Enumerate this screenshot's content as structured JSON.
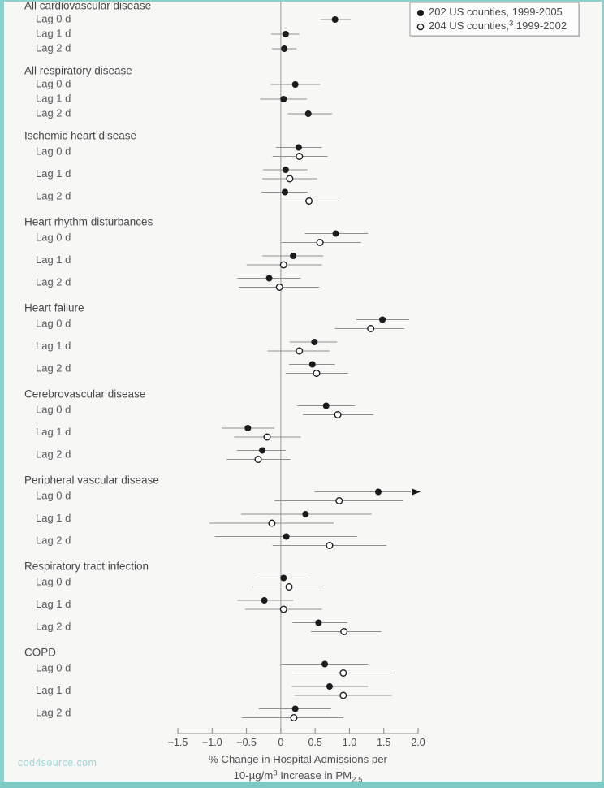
{
  "watermark": "cod4source.com",
  "colors": {
    "background": "#f7f7f5",
    "border_teal": "#8cd1cb",
    "border_teal_bottom": "#7ccac3",
    "marker_black": "#1b1b1b",
    "ci_gray": "#8f8f8f",
    "zero_line_gray": "#9c9c9c",
    "text_gray": "#4e4e50",
    "watermark_teal": "#9ed7d2",
    "legend_border": "#9b9b9b",
    "legend_fill": "#fdfdfd"
  },
  "legend": {
    "items": [
      {
        "marker": "filled",
        "parts": [
          {
            "t": "202 US counties, 1999-2005"
          }
        ]
      },
      {
        "marker": "open",
        "parts": [
          {
            "t": "204 US counties,"
          },
          {
            "t": "3",
            "sup": true
          },
          {
            "t": " 1999-2002"
          }
        ]
      }
    ]
  },
  "chart_data": {
    "type": "forest",
    "xlabel_line1": "% Change in Hospital Admissions per",
    "xlabel_line2_parts": [
      {
        "t": "10-µg/m"
      },
      {
        "t": "3",
        "sup": true
      },
      {
        "t": " Increase in PM"
      },
      {
        "t": "2.5",
        "sub": true
      }
    ],
    "xlim": [
      -1.5,
      2.0
    ],
    "axis": {
      "tick_values": [
        -1.5,
        -1.0,
        -0.5,
        0,
        0.5,
        1.0,
        1.5,
        2.0
      ],
      "ticks": [
        "−1.5",
        "−1.0",
        "−0.5",
        "0",
        "0.5",
        "1.0",
        "1.5",
        "2.0"
      ]
    },
    "series_legend": [
      "202 US counties, 1999-2005",
      "204 US counties, 1999-2002"
    ],
    "sections": [
      {
        "label": "All cardiovascular disease",
        "rows": [
          {
            "lag": "Lag 0 d",
            "series": [
              {
                "marker": "filled",
                "value": 0.79,
                "lo": 0.58,
                "hi": 1.02
              }
            ]
          },
          {
            "lag": "Lag 1 d",
            "series": [
              {
                "marker": "filled",
                "value": 0.07,
                "lo": -0.14,
                "hi": 0.27
              }
            ]
          },
          {
            "lag": "Lag 2 d",
            "series": [
              {
                "marker": "filled",
                "value": 0.05,
                "lo": -0.13,
                "hi": 0.23
              }
            ]
          }
        ]
      },
      {
        "label": "All respiratory disease",
        "rows": [
          {
            "lag": "Lag 0 d",
            "series": [
              {
                "marker": "filled",
                "value": 0.21,
                "lo": -0.15,
                "hi": 0.57
              }
            ]
          },
          {
            "lag": "Lag 1 d",
            "series": [
              {
                "marker": "filled",
                "value": 0.04,
                "lo": -0.3,
                "hi": 0.38
              }
            ]
          },
          {
            "lag": "Lag 2 d",
            "series": [
              {
                "marker": "filled",
                "value": 0.4,
                "lo": 0.1,
                "hi": 0.75
              }
            ]
          }
        ]
      },
      {
        "label": "Ischemic heart disease",
        "rows": [
          {
            "lag": "Lag 0 d",
            "series": [
              {
                "marker": "filled",
                "value": 0.26,
                "lo": -0.07,
                "hi": 0.6
              },
              {
                "marker": "open",
                "value": 0.27,
                "lo": -0.12,
                "hi": 0.68
              }
            ]
          },
          {
            "lag": "Lag 1 d",
            "series": [
              {
                "marker": "filled",
                "value": 0.07,
                "lo": -0.26,
                "hi": 0.39
              },
              {
                "marker": "open",
                "value": 0.13,
                "lo": -0.27,
                "hi": 0.53
              }
            ]
          },
          {
            "lag": "Lag 2 d",
            "series": [
              {
                "marker": "filled",
                "value": 0.06,
                "lo": -0.28,
                "hi": 0.39
              },
              {
                "marker": "open",
                "value": 0.41,
                "lo": 0.0,
                "hi": 0.85
              }
            ]
          }
        ]
      },
      {
        "label": "Heart rhythm disturbances",
        "rows": [
          {
            "lag": "Lag 0 d",
            "series": [
              {
                "marker": "filled",
                "value": 0.8,
                "lo": 0.35,
                "hi": 1.27
              },
              {
                "marker": "open",
                "value": 0.57,
                "lo": 0.01,
                "hi": 1.17
              }
            ]
          },
          {
            "lag": "Lag 1 d",
            "series": [
              {
                "marker": "filled",
                "value": 0.18,
                "lo": -0.27,
                "hi": 0.62
              },
              {
                "marker": "open",
                "value": 0.04,
                "lo": -0.5,
                "hi": 0.6
              }
            ]
          },
          {
            "lag": "Lag 2 d",
            "series": [
              {
                "marker": "filled",
                "value": -0.17,
                "lo": -0.63,
                "hi": 0.29
              },
              {
                "marker": "open",
                "value": -0.02,
                "lo": -0.61,
                "hi": 0.56
              }
            ]
          }
        ]
      },
      {
        "label": "Heart failure",
        "rows": [
          {
            "lag": "Lag 0 d",
            "series": [
              {
                "marker": "filled",
                "value": 1.48,
                "lo": 1.1,
                "hi": 1.87
              },
              {
                "marker": "open",
                "value": 1.31,
                "lo": 0.79,
                "hi": 1.8
              }
            ]
          },
          {
            "lag": "Lag 1 d",
            "series": [
              {
                "marker": "filled",
                "value": 0.49,
                "lo": 0.13,
                "hi": 0.82
              },
              {
                "marker": "open",
                "value": 0.27,
                "lo": -0.19,
                "hi": 0.71
              }
            ]
          },
          {
            "lag": "Lag 2 d",
            "series": [
              {
                "marker": "filled",
                "value": 0.46,
                "lo": 0.12,
                "hi": 0.79
              },
              {
                "marker": "open",
                "value": 0.52,
                "lo": 0.07,
                "hi": 0.98
              }
            ]
          }
        ]
      },
      {
        "label": "Cerebrovascular disease",
        "rows": [
          {
            "lag": "Lag 0 d",
            "series": [
              {
                "marker": "filled",
                "value": 0.66,
                "lo": 0.24,
                "hi": 1.08
              },
              {
                "marker": "open",
                "value": 0.83,
                "lo": 0.32,
                "hi": 1.35
              }
            ]
          },
          {
            "lag": "Lag 1 d",
            "series": [
              {
                "marker": "filled",
                "value": -0.48,
                "lo": -0.86,
                "hi": -0.09
              },
              {
                "marker": "open",
                "value": -0.2,
                "lo": -0.68,
                "hi": 0.29
              }
            ]
          },
          {
            "lag": "Lag 2 d",
            "series": [
              {
                "marker": "filled",
                "value": -0.27,
                "lo": -0.64,
                "hi": 0.07
              },
              {
                "marker": "open",
                "value": -0.33,
                "lo": -0.79,
                "hi": 0.14
              }
            ]
          }
        ]
      },
      {
        "label": "Peripheral vascular disease",
        "rows": [
          {
            "lag": "Lag 0 d",
            "series": [
              {
                "marker": "filled",
                "value": 1.42,
                "lo": 0.49,
                "hi": 2.0,
                "arrow_hi": true
              },
              {
                "marker": "open",
                "value": 0.85,
                "lo": -0.09,
                "hi": 1.78
              }
            ]
          },
          {
            "lag": "Lag 1 d",
            "series": [
              {
                "marker": "filled",
                "value": 0.36,
                "lo": -0.58,
                "hi": 1.32
              },
              {
                "marker": "open",
                "value": -0.13,
                "lo": -1.04,
                "hi": 0.77
              }
            ]
          },
          {
            "lag": "Lag 2 d",
            "series": [
              {
                "marker": "filled",
                "value": 0.08,
                "lo": -0.96,
                "hi": 1.11
              },
              {
                "marker": "open",
                "value": 0.71,
                "lo": -0.12,
                "hi": 1.54
              }
            ]
          }
        ]
      },
      {
        "label": "Respiratory tract infection",
        "rows": [
          {
            "lag": "Lag 0 d",
            "series": [
              {
                "marker": "filled",
                "value": 0.04,
                "lo": -0.35,
                "hi": 0.4
              },
              {
                "marker": "open",
                "value": 0.12,
                "lo": -0.41,
                "hi": 0.63
              }
            ]
          },
          {
            "lag": "Lag 1 d",
            "series": [
              {
                "marker": "filled",
                "value": -0.24,
                "lo": -0.63,
                "hi": 0.18
              },
              {
                "marker": "open",
                "value": 0.04,
                "lo": -0.52,
                "hi": 0.6
              }
            ]
          },
          {
            "lag": "Lag 2 d",
            "series": [
              {
                "marker": "filled",
                "value": 0.55,
                "lo": 0.17,
                "hi": 0.97
              },
              {
                "marker": "open",
                "value": 0.92,
                "lo": 0.44,
                "hi": 1.46
              }
            ]
          }
        ]
      },
      {
        "label": "COPD",
        "rows": [
          {
            "lag": "Lag 0 d",
            "series": [
              {
                "marker": "filled",
                "value": 0.64,
                "lo": 0.01,
                "hi": 1.27
              },
              {
                "marker": "open",
                "value": 0.91,
                "lo": 0.17,
                "hi": 1.67
              }
            ]
          },
          {
            "lag": "Lag 1 d",
            "series": [
              {
                "marker": "filled",
                "value": 0.71,
                "lo": 0.16,
                "hi": 1.27
              },
              {
                "marker": "open",
                "value": 0.91,
                "lo": 0.2,
                "hi": 1.62
              }
            ]
          },
          {
            "lag": "Lag 2 d",
            "series": [
              {
                "marker": "filled",
                "value": 0.21,
                "lo": -0.32,
                "hi": 0.73
              },
              {
                "marker": "open",
                "value": 0.19,
                "lo": -0.57,
                "hi": 0.91
              }
            ]
          }
        ]
      }
    ]
  }
}
